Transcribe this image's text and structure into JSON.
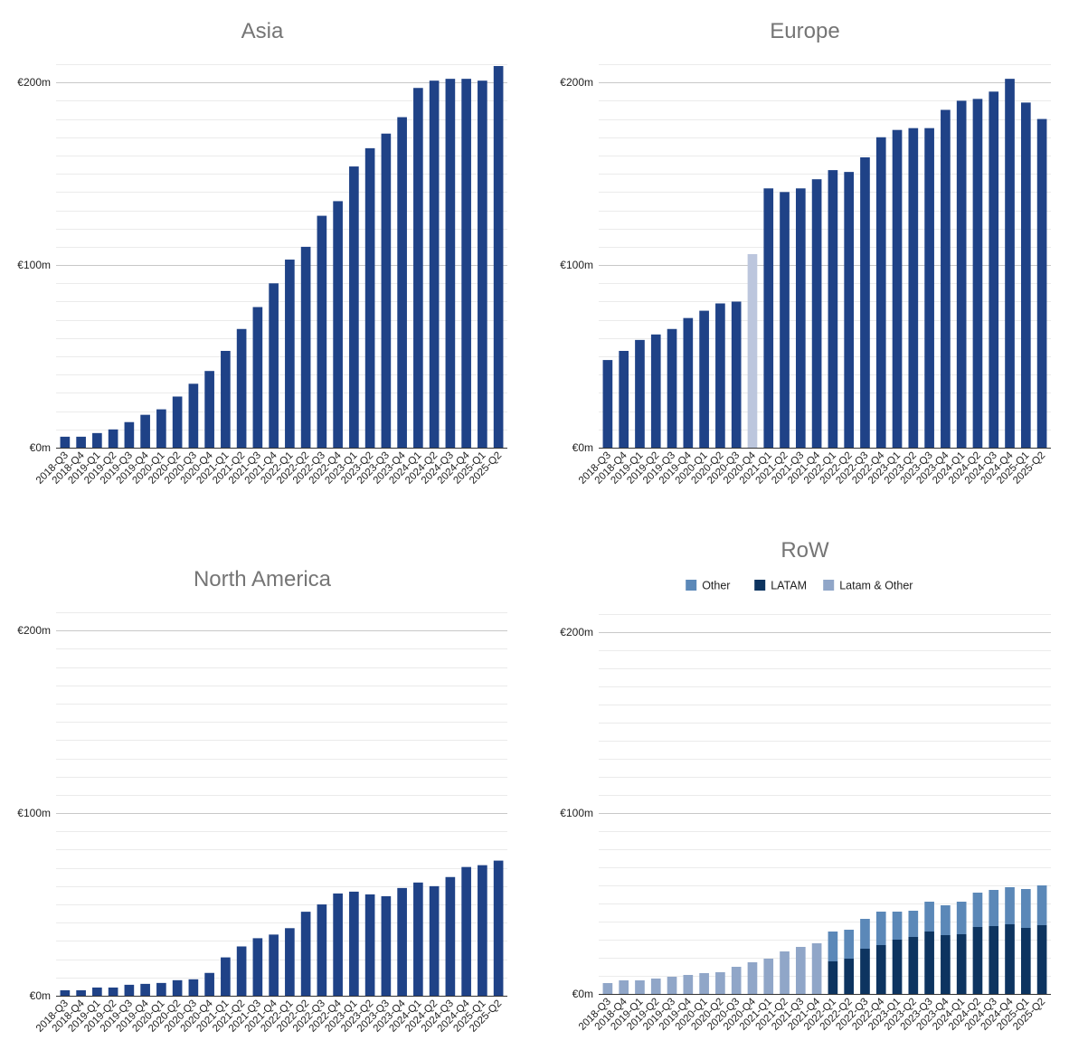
{
  "chart_data": [
    {
      "type": "bar",
      "title": "Asia",
      "categories": [
        "2018-Q3",
        "2018-Q4",
        "2019-Q1",
        "2019-Q2",
        "2019-Q3",
        "2019-Q4",
        "2020-Q1",
        "2020-Q2",
        "2020-Q3",
        "2020-Q4",
        "2021-Q1",
        "2021-Q2",
        "2021-Q3",
        "2021-Q4",
        "2022-Q1",
        "2022-Q2",
        "2022-Q3",
        "2022-Q4",
        "2023-Q1",
        "2023-Q2",
        "2023-Q3",
        "2023-Q4",
        "2024-Q1",
        "2024-Q2",
        "2024-Q3",
        "2024-Q4",
        "2025-Q1",
        "2025-Q2"
      ],
      "values": [
        6,
        6,
        8,
        10,
        14,
        18,
        21,
        28,
        35,
        42,
        53,
        65,
        77,
        90,
        103,
        110,
        127,
        135,
        154,
        164,
        172,
        181,
        197,
        201,
        202,
        202,
        201,
        209
      ],
      "colors": [
        "#1f4287"
      ],
      "ylim": [
        0,
        210
      ],
      "yticks": [
        0,
        100,
        200
      ],
      "ytick_labels": [
        "€0m",
        "€100m",
        "€200m"
      ],
      "grid": true
    },
    {
      "type": "bar",
      "title": "Europe",
      "categories": [
        "2018-Q3",
        "2018-Q4",
        "2019-Q1",
        "2019-Q2",
        "2019-Q3",
        "2019-Q4",
        "2020-Q1",
        "2020-Q2",
        "2020-Q3",
        "2020-Q4",
        "2021-Q1",
        "2021-Q2",
        "2021-Q3",
        "2021-Q4",
        "2022-Q1",
        "2022-Q2",
        "2022-Q3",
        "2022-Q4",
        "2023-Q1",
        "2023-Q2",
        "2023-Q3",
        "2023-Q4",
        "2024-Q1",
        "2024-Q2",
        "2024-Q3",
        "2024-Q4",
        "2025-Q1",
        "2025-Q2"
      ],
      "values": [
        48,
        53,
        59,
        62,
        65,
        71,
        75,
        79,
        80,
        106,
        142,
        140,
        142,
        147,
        152,
        151,
        159,
        170,
        174,
        175,
        175,
        185,
        190,
        191,
        195,
        202,
        189,
        180
      ],
      "colors": [
        "#1f4287",
        "#1f4287",
        "#1f4287",
        "#1f4287",
        "#1f4287",
        "#1f4287",
        "#1f4287",
        "#1f4287",
        "#1f4287",
        "#bcc6dd",
        "#1f4287",
        "#1f4287",
        "#1f4287",
        "#1f4287",
        "#1f4287",
        "#1f4287",
        "#1f4287",
        "#1f4287",
        "#1f4287",
        "#1f4287",
        "#1f4287",
        "#1f4287",
        "#1f4287",
        "#1f4287",
        "#1f4287",
        "#1f4287",
        "#1f4287",
        "#1f4287"
      ],
      "ylim": [
        0,
        210
      ],
      "yticks": [
        0,
        100,
        200
      ],
      "ytick_labels": [
        "€0m",
        "€100m",
        "€200m"
      ],
      "grid": true
    },
    {
      "type": "bar",
      "title": "North America",
      "categories": [
        "2018-Q3",
        "2018-Q4",
        "2019-Q1",
        "2019-Q2",
        "2019-Q3",
        "2019-Q4",
        "2020-Q1",
        "2020-Q2",
        "2020-Q3",
        "2020-Q4",
        "2021-Q1",
        "2021-Q2",
        "2021-Q3",
        "2021-Q4",
        "2022-Q1",
        "2022-Q2",
        "2022-Q3",
        "2022-Q4",
        "2023-Q1",
        "2023-Q2",
        "2023-Q3",
        "2023-Q4",
        "2024-Q1",
        "2024-Q2",
        "2024-Q3",
        "2024-Q4",
        "2025-Q1",
        "2025-Q2"
      ],
      "values": [
        3,
        3,
        4.5,
        4.5,
        6,
        6.5,
        7,
        8.5,
        9,
        12.5,
        21,
        27,
        31.5,
        33.5,
        37,
        46,
        50,
        56,
        57,
        55.5,
        54.5,
        59,
        62,
        60,
        65,
        70.5,
        71.5,
        74
      ],
      "colors": [
        "#1f4287"
      ],
      "ylim": [
        0,
        210
      ],
      "yticks": [
        0,
        100,
        200
      ],
      "ytick_labels": [
        "€0m",
        "€100m",
        "€200m"
      ],
      "grid": true
    },
    {
      "type": "bar",
      "stacked": true,
      "title": "RoW",
      "legend_position": "top",
      "categories": [
        "2018-Q3",
        "2018-Q4",
        "2019-Q1",
        "2019-Q2",
        "2019-Q3",
        "2019-Q4",
        "2020-Q1",
        "2020-Q2",
        "2020-Q3",
        "2020-Q4",
        "2021-Q1",
        "2021-Q2",
        "2021-Q3",
        "2021-Q4",
        "2022-Q1",
        "2022-Q2",
        "2022-Q3",
        "2022-Q4",
        "2023-Q1",
        "2023-Q2",
        "2023-Q3",
        "2023-Q4",
        "2024-Q1",
        "2024-Q2",
        "2024-Q3",
        "2024-Q4",
        "2025-Q1",
        "2025-Q2"
      ],
      "series": [
        {
          "name": "LATAM",
          "color": "#0d3460",
          "values": [
            0,
            0,
            0,
            0,
            0,
            0,
            0,
            0,
            0,
            0,
            0,
            0,
            0,
            0,
            18,
            19.5,
            25,
            27,
            30,
            31.5,
            34.5,
            32.5,
            33,
            37,
            37.5,
            38.5,
            36.5,
            38
          ]
        },
        {
          "name": "Other",
          "color": "#5b88b8",
          "values": [
            0,
            0,
            0,
            0,
            0,
            0,
            0,
            0,
            0,
            0,
            0,
            0,
            0,
            0,
            16.5,
            16,
            16.5,
            18.5,
            15.5,
            14.5,
            16.5,
            16.5,
            18,
            19,
            20,
            20.5,
            21.5,
            22
          ]
        },
        {
          "name": "Latam & Other",
          "color": "#90a6c8",
          "values": [
            6,
            7.5,
            7.5,
            8.5,
            9.5,
            10.5,
            11.5,
            12,
            15,
            17.5,
            19.5,
            23.5,
            26,
            28,
            0,
            0,
            0,
            0,
            0,
            0,
            0,
            0,
            0,
            0,
            0,
            0,
            0,
            0
          ]
        }
      ],
      "legend_order": [
        "Other",
        "LATAM",
        "Latam & Other"
      ],
      "ylim": [
        0,
        210
      ],
      "yticks": [
        0,
        100,
        200
      ],
      "ytick_labels": [
        "€0m",
        "€100m",
        "€200m"
      ],
      "grid": true
    }
  ]
}
